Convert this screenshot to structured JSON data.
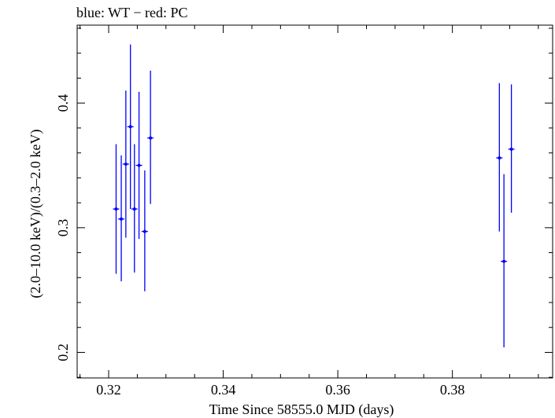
{
  "chart_data": {
    "type": "scatter",
    "title": "blue: WT − red: PC",
    "xlabel": "Time Since 58555.0 MJD (days)",
    "ylabel": "(2.0–10.0 keV)/(0.3–2.0 keV)",
    "xlim": [
      0.3145,
      0.3975
    ],
    "ylim": [
      0.1795,
      0.4625
    ],
    "x_ticks": [
      {
        "value": 0.32,
        "label": "0.32"
      },
      {
        "value": 0.34,
        "label": "0.34"
      },
      {
        "value": 0.36,
        "label": "0.36"
      },
      {
        "value": 0.38,
        "label": "0.38"
      }
    ],
    "y_ticks": [
      {
        "value": 0.2,
        "label": "0.2"
      },
      {
        "value": 0.3,
        "label": "0.3"
      },
      {
        "value": 0.4,
        "label": "0.4"
      }
    ],
    "grid": false,
    "series": [
      {
        "name": "WT",
        "color": "#0000ff",
        "points": [
          {
            "x": 0.3213,
            "y": 0.315,
            "ylo": 0.263,
            "yhi": 0.367
          },
          {
            "x": 0.3222,
            "y": 0.307,
            "ylo": 0.257,
            "yhi": 0.358
          },
          {
            "x": 0.323,
            "y": 0.351,
            "ylo": 0.292,
            "yhi": 0.41
          },
          {
            "x": 0.3238,
            "y": 0.381,
            "ylo": 0.315,
            "yhi": 0.447
          },
          {
            "x": 0.3245,
            "y": 0.315,
            "ylo": 0.264,
            "yhi": 0.367
          },
          {
            "x": 0.3253,
            "y": 0.35,
            "ylo": 0.291,
            "yhi": 0.409
          },
          {
            "x": 0.3263,
            "y": 0.297,
            "ylo": 0.249,
            "yhi": 0.346
          },
          {
            "x": 0.3273,
            "y": 0.372,
            "ylo": 0.319,
            "yhi": 0.426
          },
          {
            "x": 0.3882,
            "y": 0.356,
            "ylo": 0.297,
            "yhi": 0.416
          },
          {
            "x": 0.389,
            "y": 0.273,
            "ylo": 0.204,
            "yhi": 0.343
          },
          {
            "x": 0.3903,
            "y": 0.363,
            "ylo": 0.312,
            "yhi": 0.415
          }
        ]
      }
    ]
  }
}
